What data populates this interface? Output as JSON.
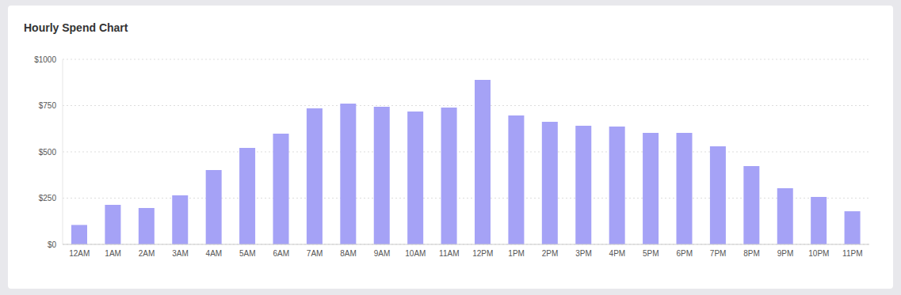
{
  "chart_data": {
    "type": "bar",
    "title": "Hourly Spend Chart",
    "categories": [
      "12AM",
      "1AM",
      "2AM",
      "3AM",
      "4AM",
      "5AM",
      "6AM",
      "7AM",
      "8AM",
      "9AM",
      "10AM",
      "11AM",
      "12PM",
      "1PM",
      "2PM",
      "3PM",
      "4PM",
      "5PM",
      "6PM",
      "7PM",
      "8PM",
      "9PM",
      "10PM",
      "11PM"
    ],
    "values": [
      105,
      214,
      197,
      265,
      402,
      521,
      598,
      735,
      761,
      744,
      718,
      739,
      889,
      697,
      662,
      641,
      637,
      603,
      603,
      530,
      423,
      303,
      256,
      179
    ],
    "color": "#a5a2f6",
    "ylim": [
      0,
      1000
    ],
    "yticks": [
      {
        "value": 0,
        "label": "$0"
      },
      {
        "value": 250,
        "label": "$250"
      },
      {
        "value": 500,
        "label": "$500"
      },
      {
        "value": 750,
        "label": "$750"
      },
      {
        "value": 1000,
        "label": "$1000"
      }
    ],
    "grid": true
  }
}
